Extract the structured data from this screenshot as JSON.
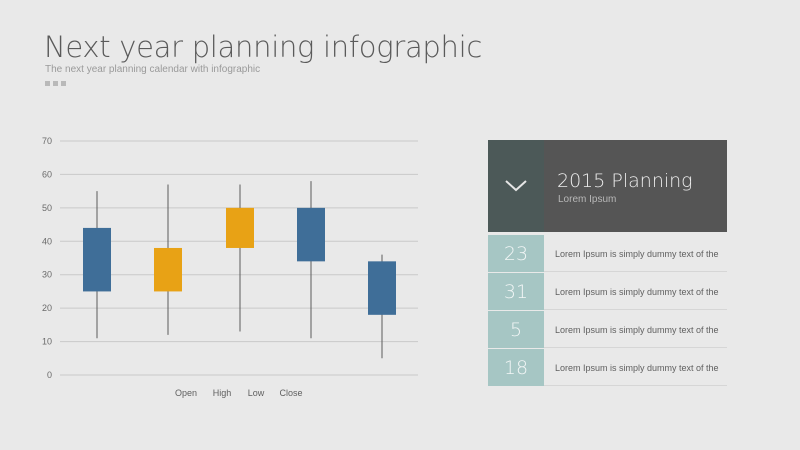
{
  "header": {
    "title": "Next year planning infographic",
    "subtitle": "The next year planning calendar with infographic"
  },
  "colors": {
    "blue": "#3f6e98",
    "orange": "#e8a215",
    "teal": "#a6c6c4",
    "dark": "#555555",
    "grid": "#c9c9c9"
  },
  "chart_data": {
    "type": "candlestick",
    "x_labels": [
      "Open",
      "High",
      "Low",
      "Close"
    ],
    "ylim": [
      0,
      70
    ],
    "yticks": [
      0,
      10,
      20,
      30,
      40,
      50,
      60,
      70
    ],
    "grid": true,
    "candles": [
      {
        "low": 11,
        "high": 55,
        "box_bottom": 25,
        "box_top": 44,
        "color": "#3f6e98"
      },
      {
        "low": 12,
        "high": 57,
        "box_bottom": 25,
        "box_top": 38,
        "color": "#e8a215"
      },
      {
        "low": 13,
        "high": 57,
        "box_bottom": 38,
        "box_top": 50,
        "color": "#e8a215"
      },
      {
        "low": 11,
        "high": 58,
        "box_bottom": 34,
        "box_top": 50,
        "color": "#3f6e98"
      },
      {
        "low": 5,
        "high": 36,
        "box_bottom": 18,
        "box_top": 34,
        "color": "#3f6e98"
      }
    ]
  },
  "panel": {
    "title": "2015 Planning",
    "subtitle": "Lorem Ipsum",
    "check_icon": "check-icon",
    "rows": [
      {
        "number": "23",
        "text": "Lorem Ipsum is simply dummy text of the"
      },
      {
        "number": "31",
        "text": "Lorem Ipsum is simply dummy text of the"
      },
      {
        "number": "5",
        "text": "Lorem Ipsum is simply dummy text of the"
      },
      {
        "number": "18",
        "text": "Lorem Ipsum is simply dummy text of the"
      }
    ]
  }
}
